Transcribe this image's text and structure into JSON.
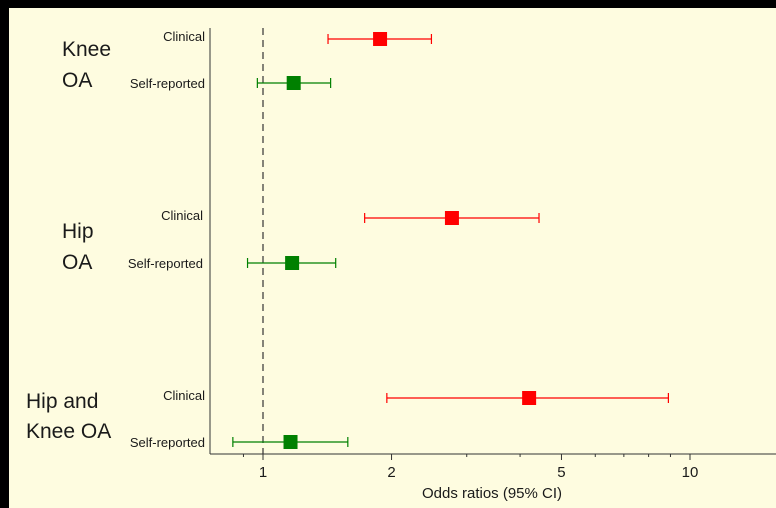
{
  "chart_data": {
    "type": "forest",
    "xlabel": "Odds ratios (95% CI)",
    "x_scale": "log",
    "xlim": [
      0.8,
      14
    ],
    "reference_line": 1,
    "xticks": [
      {
        "value": 1,
        "label": "1"
      },
      {
        "value": 2,
        "label": "2"
      },
      {
        "value": 5,
        "label": "5"
      },
      {
        "value": 10,
        "label": "10"
      }
    ],
    "groups": [
      {
        "label_lines": [
          "Knee",
          "OA"
        ],
        "rows": [
          {
            "label": "Clinical",
            "or": 1.88,
            "lower": 1.42,
            "upper": 2.48,
            "color": "#FF0000"
          },
          {
            "label": "Self-reported",
            "or": 1.18,
            "lower": 0.97,
            "upper": 1.44,
            "color": "#008000"
          }
        ]
      },
      {
        "label_lines": [
          "Hip",
          "OA"
        ],
        "rows": [
          {
            "label": "Clinical",
            "or": 2.77,
            "lower": 1.73,
            "upper": 4.43,
            "color": "#FF0000"
          },
          {
            "label": "Self-reported",
            "or": 1.17,
            "lower": 0.92,
            "upper": 1.48,
            "color": "#008000"
          }
        ]
      },
      {
        "label_lines": [
          "Hip and",
          "Knee OA"
        ],
        "rows": [
          {
            "label": "Clinical",
            "or": 4.2,
            "lower": 1.95,
            "upper": 8.9,
            "color": "#FF0000"
          },
          {
            "label": "Self-reported",
            "or": 1.16,
            "lower": 0.85,
            "upper": 1.58,
            "color": "#008000"
          }
        ]
      }
    ]
  }
}
